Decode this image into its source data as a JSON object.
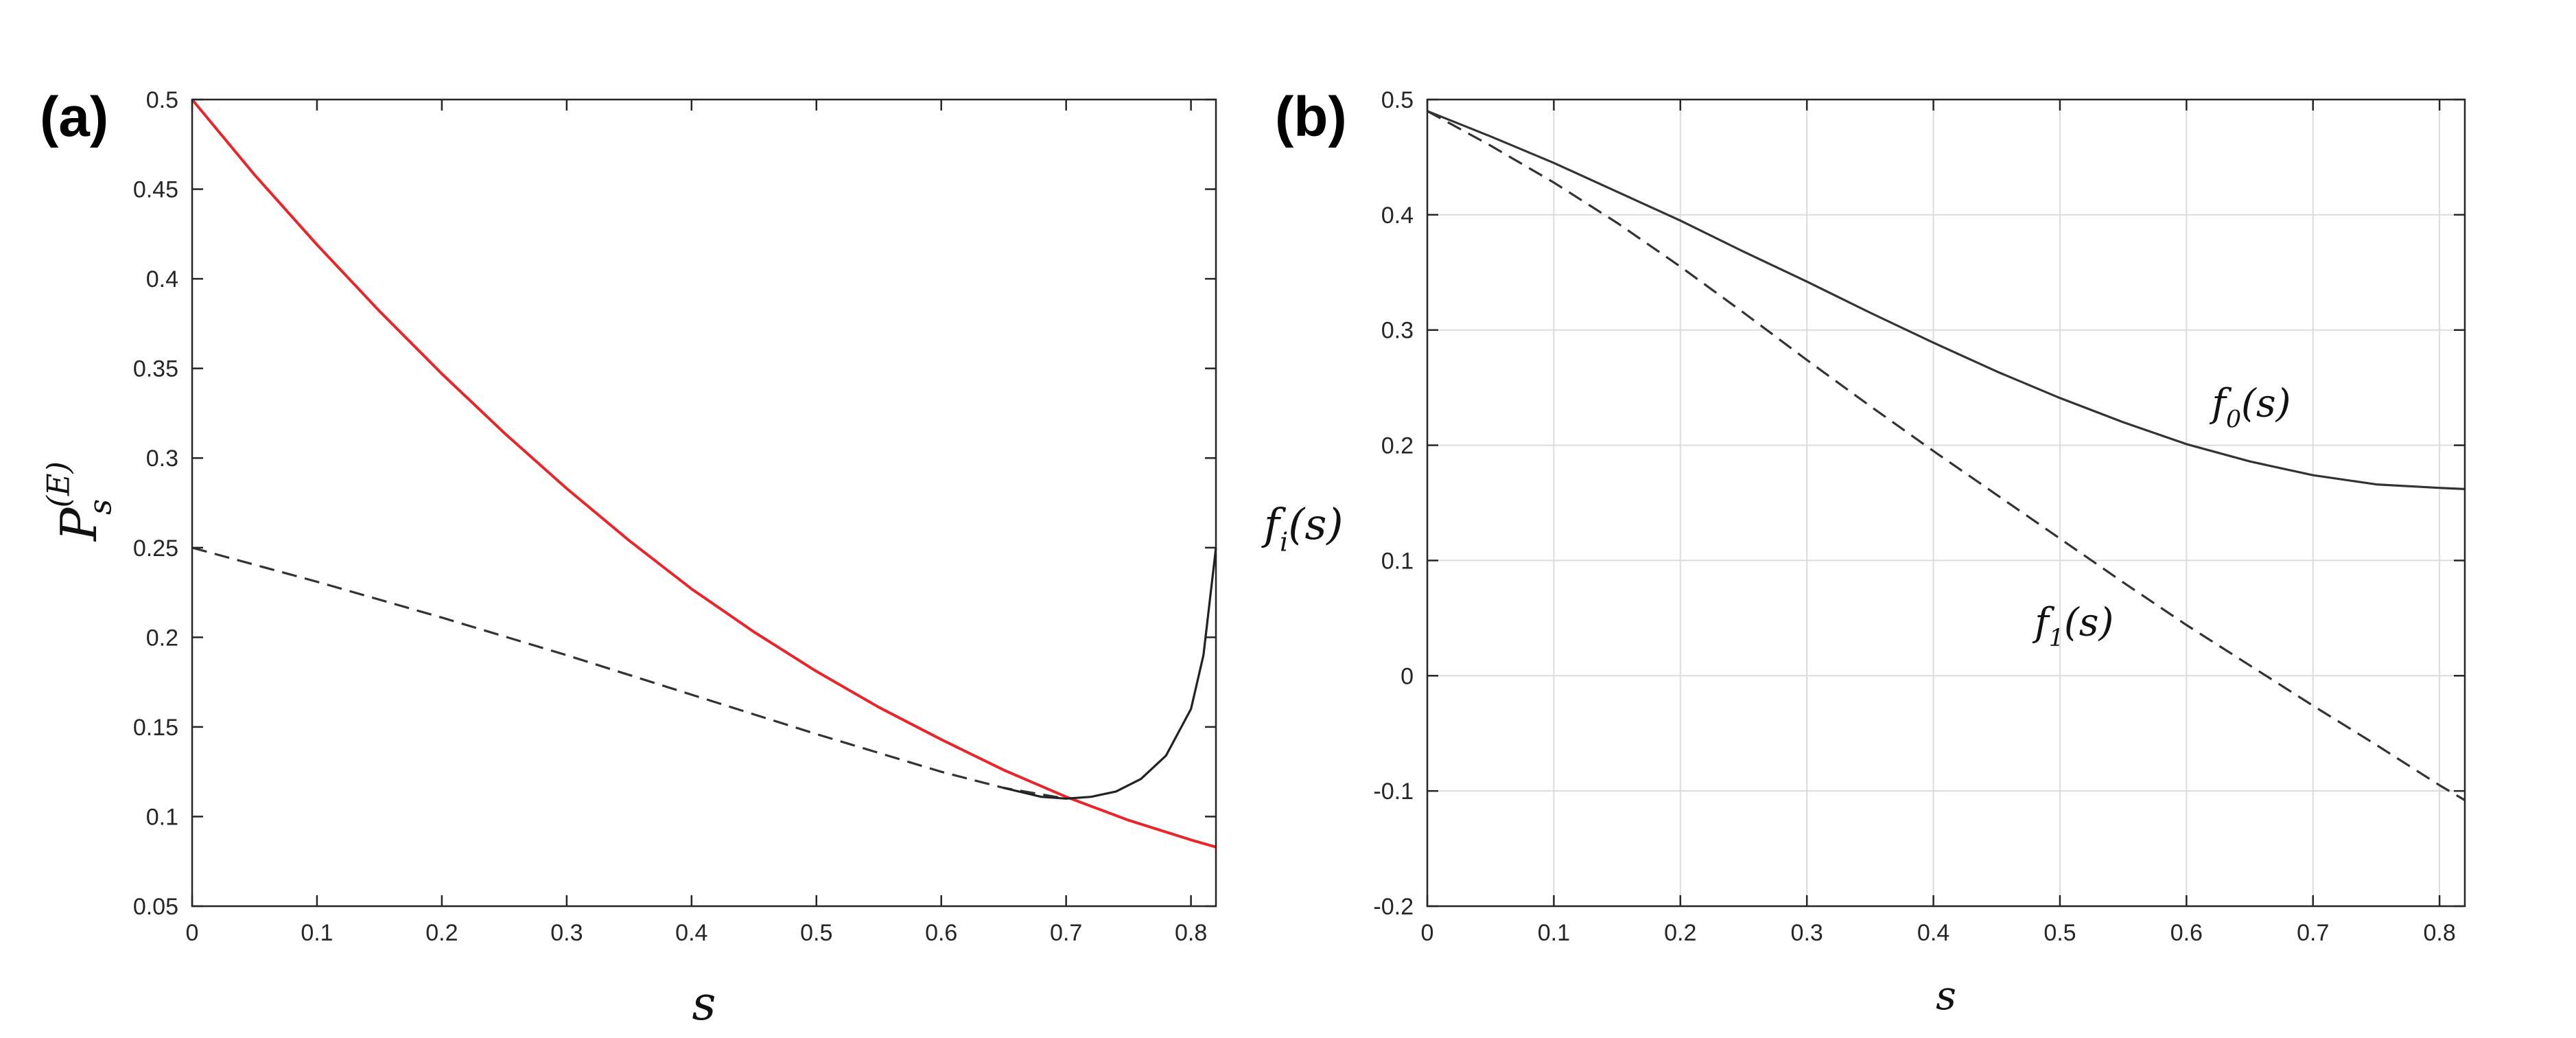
{
  "chart_data": [
    {
      "panel_label": "(a)",
      "type": "line",
      "xlabel": "s",
      "ylabel": {
        "base": "P",
        "sub": "s",
        "sup": "(E)"
      },
      "xlim": [
        0,
        0.82
      ],
      "ylim": [
        0.05,
        0.5
      ],
      "xticks": [
        "0",
        "0.1",
        "0.2",
        "0.3",
        "0.4",
        "0.5",
        "0.6",
        "0.7",
        "0.8"
      ],
      "yticks": [
        "0.05",
        "0.1",
        "0.15",
        "0.2",
        "0.25",
        "0.3",
        "0.35",
        "0.4",
        "0.45",
        "0.5"
      ],
      "grid": false,
      "series": [
        {
          "style": "solid",
          "color": "#e8262a",
          "x": [
            0,
            0.05,
            0.1,
            0.15,
            0.2,
            0.25,
            0.3,
            0.35,
            0.4,
            0.45,
            0.5,
            0.55,
            0.6,
            0.65,
            0.7,
            0.75,
            0.8,
            0.82
          ],
          "y": [
            0.5,
            0.458,
            0.419,
            0.382,
            0.347,
            0.314,
            0.283,
            0.254,
            0.227,
            0.203,
            0.181,
            0.161,
            0.143,
            0.126,
            0.111,
            0.098,
            0.087,
            0.083
          ]
        },
        {
          "style": "dashed",
          "color": "#333333",
          "x": [
            0,
            0.1,
            0.2,
            0.3,
            0.4,
            0.5,
            0.6,
            0.65,
            0.7
          ],
          "y": [
            0.25,
            0.231,
            0.211,
            0.19,
            0.168,
            0.146,
            0.125,
            0.116,
            0.11
          ]
        },
        {
          "style": "solid",
          "color": "#222222",
          "x": [
            0.65,
            0.68,
            0.7,
            0.72,
            0.74,
            0.76,
            0.78,
            0.8,
            0.81,
            0.82
          ],
          "y": [
            0.116,
            0.111,
            0.11,
            0.111,
            0.114,
            0.121,
            0.134,
            0.16,
            0.19,
            0.25
          ]
        }
      ]
    },
    {
      "panel_label": "(b)",
      "type": "line",
      "xlabel": "s",
      "ylabel": {
        "base": "f",
        "sub": "i",
        "arg": "(s)"
      },
      "xlim": [
        0,
        0.82
      ],
      "ylim": [
        -0.2,
        0.5
      ],
      "xticks": [
        "0",
        "0.1",
        "0.2",
        "0.3",
        "0.4",
        "0.5",
        "0.6",
        "0.7",
        "0.8"
      ],
      "yticks": [
        "-0.2",
        "-0.1",
        "0",
        "0.1",
        "0.2",
        "0.3",
        "0.4",
        "0.5"
      ],
      "grid": true,
      "series": [
        {
          "name": {
            "base": "f",
            "sub": "0",
            "arg": "(s)"
          },
          "style": "solid",
          "color": "#333333",
          "label_at": [
            0.62,
            0.225
          ],
          "x": [
            0,
            0.05,
            0.1,
            0.15,
            0.2,
            0.25,
            0.3,
            0.35,
            0.4,
            0.45,
            0.5,
            0.55,
            0.6,
            0.65,
            0.7,
            0.75,
            0.8,
            0.82
          ],
          "y": [
            0.49,
            0.468,
            0.445,
            0.42,
            0.395,
            0.368,
            0.342,
            0.315,
            0.289,
            0.264,
            0.241,
            0.22,
            0.201,
            0.186,
            0.174,
            0.166,
            0.163,
            0.162
          ]
        },
        {
          "name": {
            "base": "f",
            "sub": "1",
            "arg": "(s)"
          },
          "style": "dashed",
          "color": "#333333",
          "label_at": [
            0.48,
            0.035
          ],
          "x": [
            0,
            0.05,
            0.1,
            0.15,
            0.2,
            0.25,
            0.3,
            0.35,
            0.4,
            0.45,
            0.5,
            0.55,
            0.6,
            0.65,
            0.7,
            0.75,
            0.8,
            0.82
          ],
          "y": [
            0.49,
            0.46,
            0.428,
            0.393,
            0.355,
            0.315,
            0.274,
            0.234,
            0.195,
            0.157,
            0.119,
            0.081,
            0.044,
            0.009,
            -0.026,
            -0.06,
            -0.095,
            -0.108
          ]
        }
      ]
    }
  ]
}
